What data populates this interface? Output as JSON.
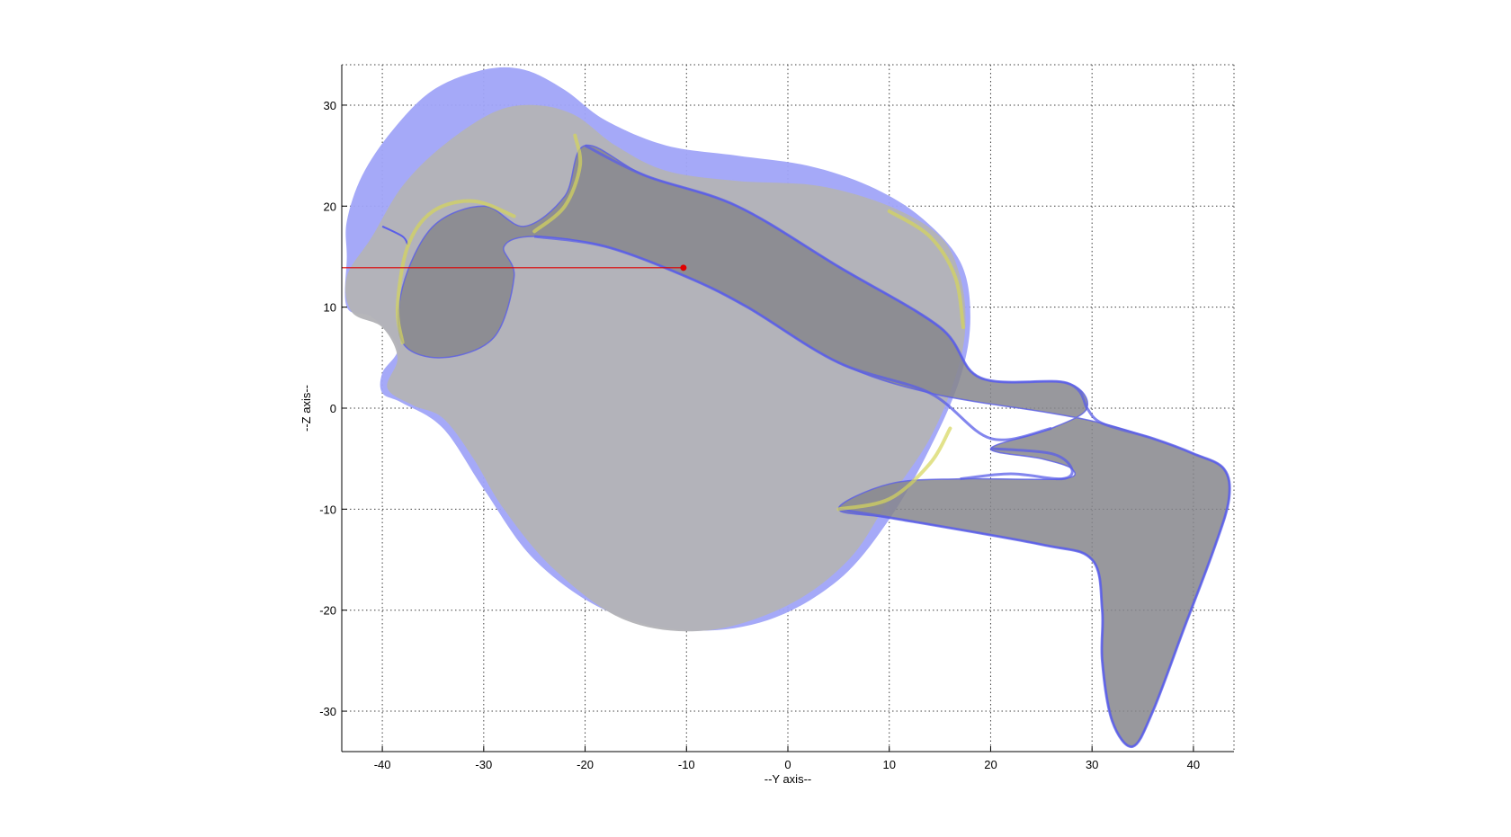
{
  "chart_data": {
    "type": "3d-surface-projection",
    "xlabel": "--Y axis--",
    "ylabel": "--Z axis--",
    "xlim": [
      -44,
      44
    ],
    "ylim": [
      -34,
      34
    ],
    "xticks": [
      -40,
      -30,
      -20,
      -10,
      0,
      10,
      20,
      30,
      40
    ],
    "yticks": [
      30,
      20,
      10,
      0,
      -10,
      -20,
      -30
    ],
    "grid": true,
    "colors": {
      "outer_surface": "#a0a4f8",
      "inner_surface": "#b4b4b8",
      "tract_surface": "#86868c",
      "edge": "#5a5ee8",
      "highlight": "#d6d65a",
      "marker": "#e00000"
    },
    "marker": {
      "x": -10.3,
      "y": 13.9,
      "line_from_x": -44
    },
    "outer_surface": [
      [
        -43.5,
        18.5
      ],
      [
        -42,
        23
      ],
      [
        -39,
        27.5
      ],
      [
        -35,
        31.5
      ],
      [
        -30,
        33.5
      ],
      [
        -26,
        33.5
      ],
      [
        -22,
        31.5
      ],
      [
        -18,
        28.5
      ],
      [
        -12,
        26
      ],
      [
        -5,
        25
      ],
      [
        2,
        24
      ],
      [
        8,
        22
      ],
      [
        13,
        19
      ],
      [
        17,
        14.5
      ],
      [
        18,
        9
      ],
      [
        17,
        3
      ],
      [
        14,
        -4
      ],
      [
        10,
        -11
      ],
      [
        5,
        -17
      ],
      [
        -2,
        -21
      ],
      [
        -10,
        -22
      ],
      [
        -18,
        -20
      ],
      [
        -25,
        -15
      ],
      [
        -30,
        -8
      ],
      [
        -34,
        -2
      ],
      [
        -38,
        0.5
      ],
      [
        -40,
        1.5
      ],
      [
        -40,
        3.5
      ],
      [
        -38.5,
        6
      ],
      [
        -41,
        9
      ],
      [
        -43.5,
        10
      ],
      [
        -43.5,
        15
      ]
    ],
    "inner_surface": [
      [
        -43.5,
        13
      ],
      [
        -41,
        17
      ],
      [
        -38,
        22
      ],
      [
        -34,
        26
      ],
      [
        -29,
        29.3
      ],
      [
        -25,
        30
      ],
      [
        -21,
        29
      ],
      [
        -17,
        26
      ],
      [
        -12,
        23.5
      ],
      [
        -5,
        22.5
      ],
      [
        3,
        22
      ],
      [
        10,
        20
      ],
      [
        15,
        17
      ],
      [
        17,
        13
      ],
      [
        17.5,
        8
      ],
      [
        16.5,
        3
      ],
      [
        14,
        -3
      ],
      [
        10,
        -9
      ],
      [
        6,
        -15
      ],
      [
        0,
        -19.5
      ],
      [
        -8,
        -22
      ],
      [
        -16,
        -21
      ],
      [
        -23,
        -16
      ],
      [
        -28,
        -10
      ],
      [
        -31,
        -5
      ],
      [
        -34,
        -1
      ],
      [
        -37,
        0.3
      ],
      [
        -39.5,
        2
      ],
      [
        -38.5,
        5
      ],
      [
        -40,
        8
      ],
      [
        -43,
        9.5
      ]
    ],
    "tract_surface": [
      [
        -20,
        26
      ],
      [
        -14,
        23
      ],
      [
        -5,
        20
      ],
      [
        5,
        14
      ],
      [
        15,
        8
      ],
      [
        19,
        3
      ],
      [
        27.5,
        2.5
      ],
      [
        29.5,
        0
      ],
      [
        26,
        -2
      ],
      [
        20,
        -4
      ],
      [
        25,
        -5
      ],
      [
        28,
        -6
      ],
      [
        27,
        -7
      ],
      [
        17,
        -7
      ],
      [
        10,
        -7.5
      ],
      [
        5,
        -10
      ],
      [
        11,
        -11
      ],
      [
        25,
        -13.5
      ],
      [
        30,
        -15
      ],
      [
        31,
        -20
      ],
      [
        31,
        -25
      ],
      [
        32,
        -31
      ],
      [
        34,
        -33.5
      ],
      [
        36,
        -30
      ],
      [
        39,
        -22
      ],
      [
        42,
        -14
      ],
      [
        43.5,
        -9
      ],
      [
        43,
        -6
      ],
      [
        40,
        -4.5
      ],
      [
        36,
        -3
      ],
      [
        31,
        -1.5
      ],
      [
        26,
        -0.5
      ],
      [
        14,
        1.5
      ],
      [
        5,
        4.5
      ],
      [
        -4,
        10
      ],
      [
        -10,
        13
      ],
      [
        -18,
        16
      ],
      [
        -25,
        17
      ],
      [
        -28,
        16
      ],
      [
        -27,
        13
      ],
      [
        -29,
        7
      ],
      [
        -34,
        5
      ],
      [
        -38,
        6.5
      ],
      [
        -38,
        12
      ],
      [
        -35,
        18
      ],
      [
        -30,
        20
      ],
      [
        -26,
        18
      ],
      [
        -22,
        21
      ]
    ],
    "edge_left_cavity": [
      [
        -40,
        18
      ],
      [
        -38,
        17
      ],
      [
        -37.5,
        16.2
      ]
    ],
    "highlight_arcs": [
      [
        [
          -38,
          6.5
        ],
        [
          -38.5,
          10
        ],
        [
          -37.5,
          16
        ],
        [
          -35,
          19.5
        ],
        [
          -31,
          20.5
        ],
        [
          -27,
          19
        ]
      ],
      [
        [
          -25,
          17.5
        ],
        [
          -22,
          20
        ],
        [
          -20.5,
          24
        ],
        [
          -21,
          27
        ]
      ],
      [
        [
          10,
          19.5
        ],
        [
          14,
          17
        ],
        [
          16.5,
          13
        ],
        [
          17.3,
          8
        ]
      ],
      [
        [
          5,
          -10
        ],
        [
          10,
          -9
        ],
        [
          14,
          -5.5
        ],
        [
          16,
          -2
        ]
      ]
    ],
    "tract_edges": [
      [
        [
          -20,
          26
        ],
        [
          -14,
          23
        ],
        [
          -5,
          20
        ],
        [
          5,
          14
        ],
        [
          15,
          8
        ],
        [
          19,
          3
        ],
        [
          27.5,
          2.5
        ],
        [
          29.5,
          0
        ]
      ],
      [
        [
          -25,
          17
        ],
        [
          -18,
          16
        ],
        [
          -10,
          13
        ],
        [
          -4,
          10
        ],
        [
          5,
          4.5
        ],
        [
          14,
          1.5
        ],
        [
          20,
          -3
        ],
        [
          26,
          -2
        ]
      ],
      [
        [
          5,
          -10
        ],
        [
          11,
          -11
        ],
        [
          25,
          -13.5
        ],
        [
          30,
          -15
        ],
        [
          31,
          -20
        ],
        [
          31,
          -25
        ],
        [
          32,
          -31
        ],
        [
          34,
          -33.5
        ],
        [
          36,
          -30
        ],
        [
          39,
          -22
        ],
        [
          42,
          -14
        ],
        [
          43.5,
          -9
        ],
        [
          43,
          -6
        ],
        [
          40,
          -4.5
        ],
        [
          36,
          -3
        ],
        [
          31,
          -1.5
        ],
        [
          29.5,
          0
        ]
      ],
      [
        [
          17,
          -7
        ],
        [
          22,
          -6.5
        ],
        [
          27,
          -7
        ],
        [
          28,
          -6
        ],
        [
          26,
          -4.5
        ],
        [
          20,
          -4
        ]
      ]
    ]
  }
}
